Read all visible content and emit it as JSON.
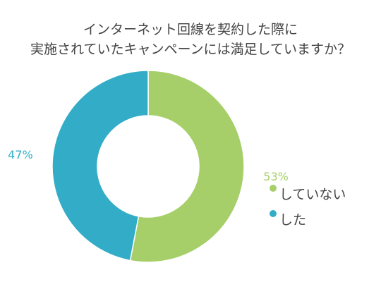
{
  "chart_data": {
    "type": "pie",
    "donut": true,
    "title_lines": [
      "インターネット回線を契約した際に",
      "実施されていたキャンペーンには満足していますか？"
    ],
    "labels": [
      "していない",
      "した"
    ],
    "values": [
      53,
      47
    ],
    "value_labels": [
      "53%",
      "47%"
    ],
    "colors": [
      "#a6cf6a",
      "#33adc7"
    ],
    "legend_position": "right"
  }
}
